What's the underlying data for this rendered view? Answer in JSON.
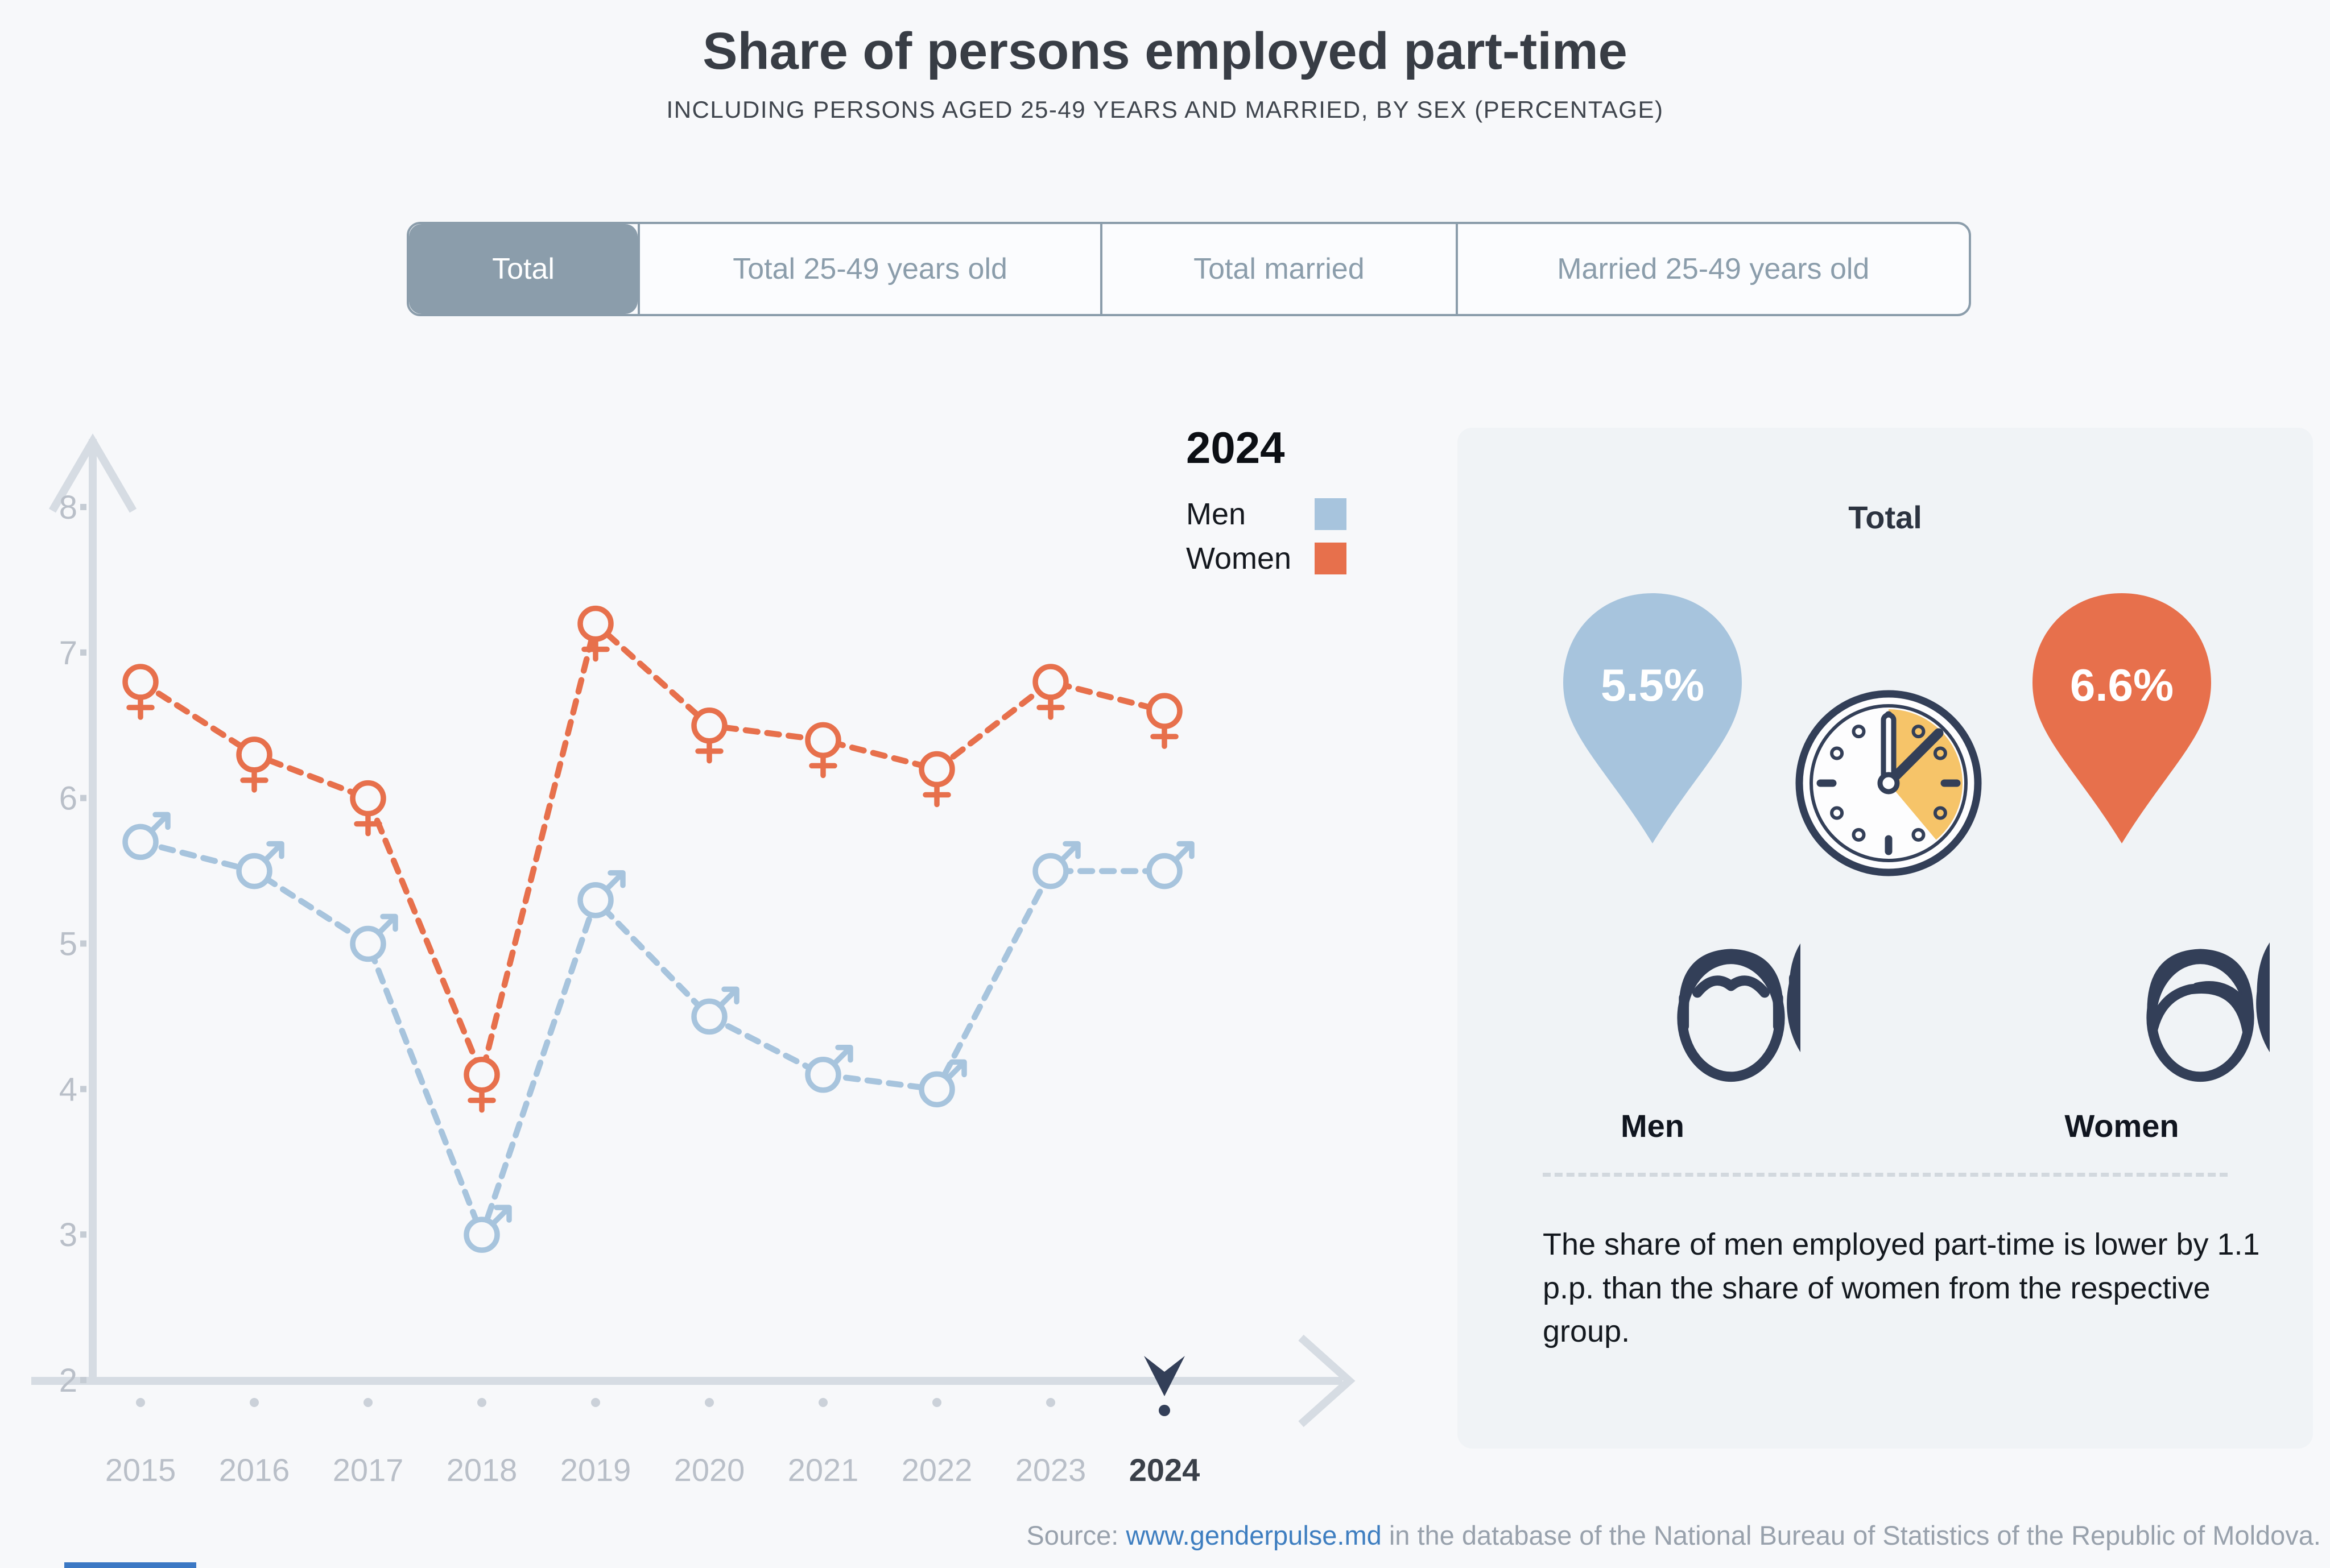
{
  "header": {
    "title": "Share of persons employed part-time",
    "subtitle": "INCLUDING PERSONS AGED 25-49 YEARS AND MARRIED, BY SEX (PERCENTAGE)"
  },
  "tabs": [
    {
      "label": "Total",
      "active": true
    },
    {
      "label": "Total 25-49 years old",
      "active": false
    },
    {
      "label": "Total married",
      "active": false
    },
    {
      "label": "Married 25-49 years old",
      "active": false
    }
  ],
  "legend": {
    "year": "2024",
    "men_label": "Men",
    "women_label": "Women"
  },
  "chart_data": {
    "type": "line",
    "title": "Share of persons employed part-time",
    "x": [
      "2015",
      "2016",
      "2017",
      "2018",
      "2019",
      "2020",
      "2021",
      "2022",
      "2023",
      "2024"
    ],
    "series": [
      {
        "name": "Men",
        "marker": "male",
        "color": "#a7c4dd",
        "values": [
          5.7,
          5.5,
          5.0,
          3.0,
          5.3,
          4.5,
          4.1,
          4.0,
          5.5,
          5.5
        ]
      },
      {
        "name": "Women",
        "marker": "female",
        "color": "#e7704c",
        "values": [
          6.8,
          6.3,
          6.0,
          4.1,
          7.2,
          6.5,
          6.4,
          6.2,
          6.8,
          6.6
        ]
      }
    ],
    "ylim": [
      2,
      8
    ],
    "yticks": [
      8,
      7,
      6,
      5,
      4,
      3,
      2
    ],
    "xlabel": "",
    "ylabel": "",
    "grid": false,
    "line_style": "dashed",
    "highlight_x": "2024",
    "legend_position": "top-right"
  },
  "panel": {
    "title": "Total",
    "men_value": "5.5%",
    "women_value": "6.6%",
    "men_label": "Men",
    "women_label": "Women",
    "description": "The share of men employed part-time is lower by 1.1 p.p. than the share of women from the respective group."
  },
  "source": {
    "prefix": "Source: ",
    "link": "www.genderpulse.md",
    "suffix": " in the database of the National Bureau of Statistics of the Republic of Moldova."
  },
  "colors": {
    "men": "#a7c4dd",
    "women": "#e7704c",
    "navy": "#333f58",
    "yellow": "#f6c469",
    "tab_active": "#8b9dab",
    "link": "#3e7ec0",
    "axis": "#d6dce3",
    "tick_label": "#b9bfc8",
    "page_bg": "#f7f8fa",
    "panel_bg": "#f0f3f6"
  }
}
